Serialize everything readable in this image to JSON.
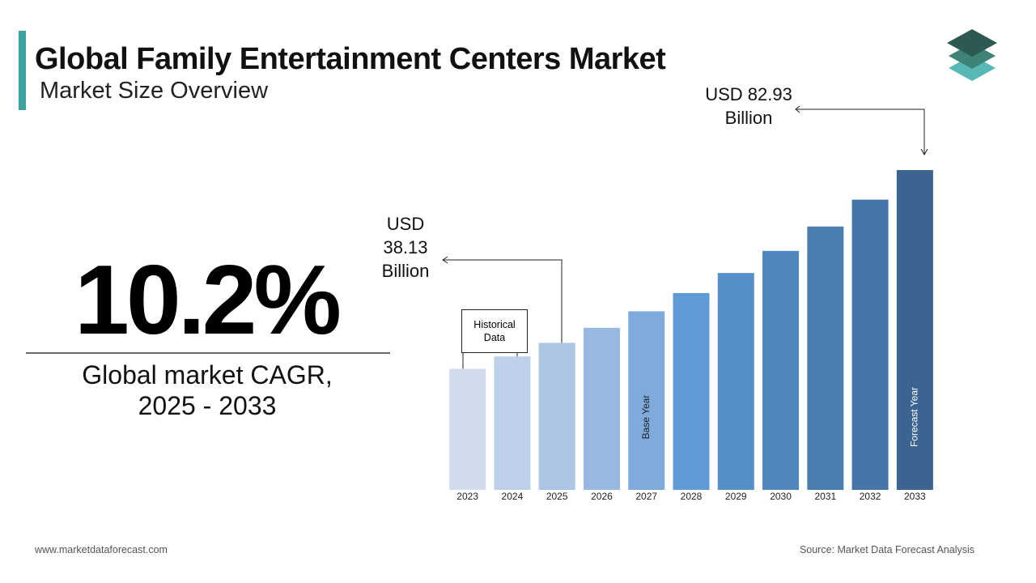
{
  "header": {
    "title": "Global Family Entertainment Centers Market",
    "subtitle": "Market Size Overview"
  },
  "kpi": {
    "value": "10.2%",
    "label": "Global market CAGR, 2025 - 2033"
  },
  "chart_data": {
    "type": "bar",
    "categories": [
      "2023",
      "2024",
      "2025",
      "2026",
      "2027",
      "2028",
      "2029",
      "2030",
      "2031",
      "2032",
      "2033"
    ],
    "values": [
      31.4,
      34.6,
      38.13,
      42.02,
      46.31,
      51.03,
      56.23,
      61.97,
      68.29,
      75.25,
      82.93
    ],
    "value_labels": [
      null,
      null,
      "USD 38.13 Billion",
      null,
      null,
      null,
      null,
      null,
      null,
      null,
      "USD 82.93 Billion"
    ],
    "bar_notes": [
      null,
      null,
      null,
      null,
      "Base Year",
      null,
      null,
      null,
      null,
      null,
      "Forecast Year"
    ],
    "colors": [
      "#d0dcee",
      "#bfd1ea",
      "#aec6e6",
      "#97b8e0",
      "#7eaadc",
      "#5e9ad6",
      "#558ec8",
      "#4f86bd",
      "#4a7eb2",
      "#4475a6",
      "#3b6590"
    ],
    "annotation": "Historical Data"
  },
  "footer": {
    "website": "www.marketdataforecast.com",
    "source": "Source: Market Data Forecast Analysis"
  }
}
